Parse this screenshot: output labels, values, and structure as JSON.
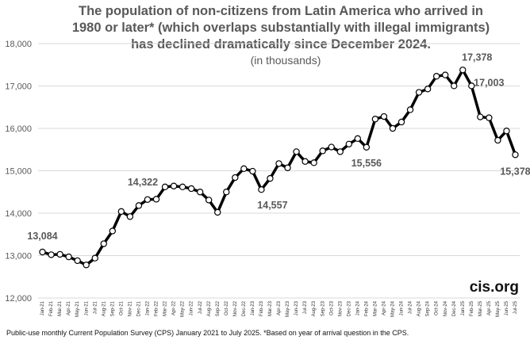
{
  "title_lines": [
    "The population of non-citizens from Latin America who arrived in",
    "1980 or later* (which overlaps substantially with illegal immigrants)",
    "has declined dramatically since December 2024."
  ],
  "subtitle": "(in thousands)",
  "brand": "cis.org",
  "footnote": "Public-use monthly Current Population Survey (CPS) January 2021 to July 2025.  *Based on year of arrival question in the CPS.",
  "chart_data": {
    "type": "line",
    "title": "The population of non-citizens from Latin America who arrived in 1980 or later* (which overlaps substantially with illegal immigrants) has declined dramatically since December 2024.",
    "subtitle": "(in thousands)",
    "ylim": [
      12000,
      18000
    ],
    "yticks": [
      12000,
      13000,
      14000,
      15000,
      16000,
      17000,
      18000
    ],
    "ytick_labels": [
      "12,000",
      "13,000",
      "14,000",
      "15,000",
      "16,000",
      "17,000",
      "18,000"
    ],
    "grid": true,
    "legend": "none",
    "categories": [
      "Jan-21",
      "Feb-21",
      "Mar-21",
      "Apr-21",
      "May-21",
      "Jun-21",
      "Jul-21",
      "Aug-21",
      "Sep-21",
      "Oct-21",
      "Nov-21",
      "Dec-21",
      "Jan-22",
      "Feb-22",
      "Mar-22",
      "Apr-22",
      "May-22",
      "Jun-22",
      "Jul-22",
      "Aug-22",
      "Sep-22",
      "Oct-22",
      "Nov-22",
      "Dec-22",
      "Jan-23",
      "Feb-23",
      "Mar-23",
      "Apr-23",
      "May-23",
      "Jun-23",
      "Jul-23",
      "Aug-23",
      "Sep-23",
      "Oct-23",
      "Nov-23",
      "Dec-23",
      "Jan-24",
      "Feb-24",
      "Mar-24",
      "Apr-24",
      "May-24",
      "Jun-24",
      "Jul-24",
      "Aug-24",
      "Sep-24",
      "Oct-24",
      "Nov-24",
      "Dec-24",
      "Jan-25",
      "Feb-25",
      "Mar-25",
      "Apr-25",
      "May-25",
      "Jun-25",
      "Jul-25"
    ],
    "series": [
      {
        "values": [
          13084,
          13020,
          13030,
          12970,
          12880,
          12780,
          12940,
          13280,
          13580,
          14040,
          13920,
          14180,
          14322,
          14330,
          14620,
          14640,
          14620,
          14580,
          14500,
          14310,
          14020,
          14500,
          14840,
          15050,
          14990,
          14557,
          14820,
          15170,
          15070,
          15450,
          15220,
          15190,
          15470,
          15560,
          15450,
          15630,
          15760,
          15556,
          16220,
          16280,
          16000,
          16150,
          16440,
          16850,
          16930,
          17230,
          17260,
          17003,
          17378,
          17003,
          16270,
          16250,
          15720,
          15940,
          15378
        ]
      }
    ],
    "data_labels": [
      {
        "index": 0,
        "text": "13,084"
      },
      {
        "index": 12,
        "text": "14,322"
      },
      {
        "index": 25,
        "text": "14,557"
      },
      {
        "index": 37,
        "text": "15,556"
      },
      {
        "index": 48,
        "text": "17,378"
      },
      {
        "index": 49,
        "text": "17,003"
      },
      {
        "index": 54,
        "text": "15,378"
      }
    ]
  }
}
